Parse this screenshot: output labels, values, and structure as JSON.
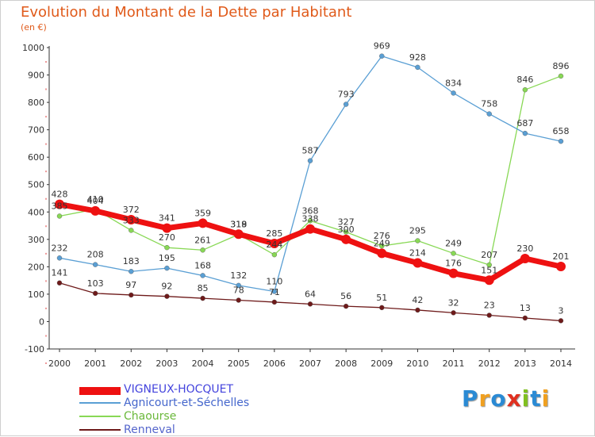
{
  "title": "Evolution du Montant de la Dette par Habitant",
  "subtitle": "(en €)",
  "logo": {
    "text": "Proxiti",
    "letters": [
      {
        "ch": "P",
        "color": "#2a8ad4"
      },
      {
        "ch": "r",
        "color": "#f0a020"
      },
      {
        "ch": "o",
        "color": "#2a8ad4"
      },
      {
        "ch": "x",
        "color": "#e03020"
      },
      {
        "ch": "i",
        "color": "#80c020"
      },
      {
        "ch": "t",
        "color": "#2a8ad4"
      },
      {
        "ch": "i",
        "color": "#f0a020"
      }
    ]
  },
  "chart_data": {
    "type": "line",
    "title": "Evolution du Montant de la Dette par Habitant",
    "subtitle": "(en €)",
    "x": [
      "2000",
      "2001",
      "2002",
      "2003",
      "2004",
      "2005",
      "2006",
      "2007",
      "2008",
      "2009",
      "2010",
      "2011",
      "2012",
      "2013",
      "2014"
    ],
    "ylim": [
      -100,
      1000
    ],
    "yticks": [
      -100,
      0,
      100,
      200,
      300,
      400,
      500,
      600,
      700,
      800,
      900,
      1000
    ],
    "grid": false,
    "legend_position": "bottom-left",
    "series": [
      {
        "name": "VIGNEUX-HOCQUET",
        "color": "#ee1111",
        "width": 7,
        "marker": 6,
        "values": [
          428,
          404,
          372,
          341,
          359,
          319,
          285,
          338,
          300,
          249,
          214,
          176,
          151,
          230,
          201
        ]
      },
      {
        "name": "Agnicourt-et-Séchelles",
        "color": "#5a9fd4",
        "width": 1.3,
        "marker": 3,
        "values": [
          232,
          208,
          183,
          195,
          168,
          132,
          110,
          587,
          793,
          969,
          928,
          834,
          758,
          687,
          658
        ]
      },
      {
        "name": "Chaourse",
        "color": "#88d855",
        "width": 1.3,
        "marker": 3,
        "values": [
          385,
          410,
          333,
          270,
          261,
          318,
          244,
          368,
          327,
          276,
          295,
          249,
          207,
          846,
          896
        ]
      },
      {
        "name": "Renneval",
        "color": "#6e1a1a",
        "width": 1.3,
        "marker": 3,
        "values": [
          141,
          103,
          97,
          92,
          85,
          78,
          71,
          64,
          56,
          51,
          42,
          32,
          23,
          13,
          3
        ]
      }
    ]
  }
}
